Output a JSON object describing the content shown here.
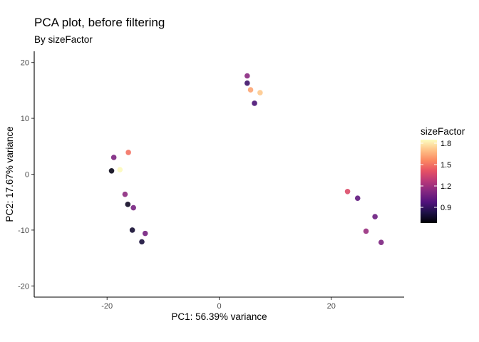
{
  "chart_data": {
    "type": "scatter",
    "title": "PCA plot, before filtering",
    "subtitle": "By sizeFactor",
    "xlabel": "PC1: 56.39% variance",
    "ylabel": "PC2: 17.67% variance",
    "xlim": [
      -33,
      33
    ],
    "ylim": [
      -22,
      22
    ],
    "xticks": [
      -20,
      0,
      20
    ],
    "yticks": [
      -20,
      -10,
      0,
      10,
      20
    ],
    "grid": false,
    "legend": {
      "title": "sizeFactor",
      "placement": "right",
      "ticks": [
        0.9,
        1.2,
        1.5,
        1.8
      ],
      "range": [
        0.68,
        1.85
      ]
    },
    "colors": {
      "scale": [
        "#000004",
        "#1d1147",
        "#51127c",
        "#822681",
        "#b73779",
        "#e65164",
        "#fb8861",
        "#fec287",
        "#fcfdbf"
      ],
      "axis": "#000000",
      "tick_label": "#4d4d4d"
    },
    "points": [
      {
        "x": -19.2,
        "y": 0.6,
        "sizeFactor": 0.72
      },
      {
        "x": -18.8,
        "y": 3.0,
        "sizeFactor": 1.1
      },
      {
        "x": -17.7,
        "y": 0.8,
        "sizeFactor": 1.84
      },
      {
        "x": -16.8,
        "y": -3.6,
        "sizeFactor": 1.15
      },
      {
        "x": -16.2,
        "y": 3.9,
        "sizeFactor": 1.5
      },
      {
        "x": -16.3,
        "y": -5.4,
        "sizeFactor": 0.75
      },
      {
        "x": -15.3,
        "y": -6.0,
        "sizeFactor": 1.08
      },
      {
        "x": -15.5,
        "y": -10.0,
        "sizeFactor": 0.78
      },
      {
        "x": -13.2,
        "y": -10.6,
        "sizeFactor": 1.08
      },
      {
        "x": -13.8,
        "y": -12.1,
        "sizeFactor": 0.8
      },
      {
        "x": 5.0,
        "y": 17.6,
        "sizeFactor": 1.14
      },
      {
        "x": 5.0,
        "y": 16.3,
        "sizeFactor": 0.92
      },
      {
        "x": 5.6,
        "y": 15.1,
        "sizeFactor": 1.63
      },
      {
        "x": 7.3,
        "y": 14.6,
        "sizeFactor": 1.72
      },
      {
        "x": 6.3,
        "y": 12.7,
        "sizeFactor": 0.95
      },
      {
        "x": 22.9,
        "y": -3.1,
        "sizeFactor": 1.38
      },
      {
        "x": 24.7,
        "y": -4.3,
        "sizeFactor": 1.02
      },
      {
        "x": 26.2,
        "y": -10.2,
        "sizeFactor": 1.18
      },
      {
        "x": 27.8,
        "y": -7.6,
        "sizeFactor": 1.05
      },
      {
        "x": 28.9,
        "y": -12.2,
        "sizeFactor": 1.1
      }
    ]
  }
}
